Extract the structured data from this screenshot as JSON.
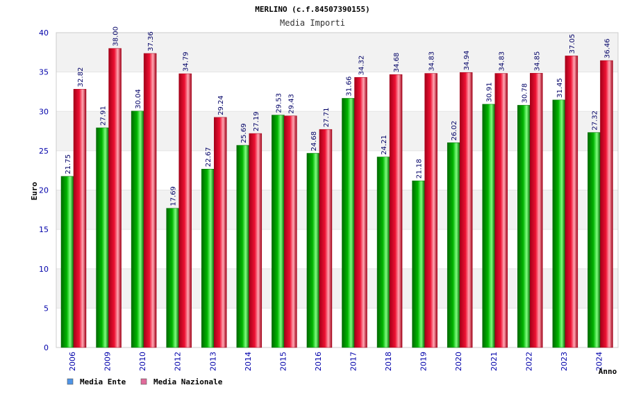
{
  "colors": {
    "ente_main": "#00b400",
    "ente_dark": "#006a00",
    "ente_light": "#7dff7d",
    "nazionale_main": "#ee1133",
    "nazionale_dark": "#a30018",
    "nazionale_light": "#ffa8b4",
    "legend_ente": "#4f94e6",
    "legend_nazionale": "#e06b9a",
    "band": "#f2f2f2",
    "tick_text": "#0000aa"
  },
  "chart_data": {
    "type": "bar",
    "title": "MERLINO (c.f.84507390155)",
    "subtitle": "Media Importi",
    "xlabel": "Anno",
    "ylabel": "Euro",
    "ylim": [
      0,
      40
    ],
    "yticks": [
      "0",
      "5",
      "10",
      "15",
      "20",
      "25",
      "30",
      "35",
      "40"
    ],
    "grid": "alternating horizontal bands",
    "legend_position": "bottom-left",
    "categories": [
      "2006",
      "2009",
      "2010",
      "2012",
      "2013",
      "2014",
      "2015",
      "2016",
      "2017",
      "2018",
      "2019",
      "2020",
      "2021",
      "2022",
      "2023",
      "2024"
    ],
    "series": [
      {
        "name": "Media Ente",
        "values": [
          21.75,
          27.91,
          30.04,
          17.69,
          22.67,
          25.69,
          29.53,
          24.68,
          31.66,
          24.21,
          21.18,
          26.02,
          30.91,
          30.78,
          31.45,
          27.32
        ],
        "labels": [
          "21.75",
          "27.91",
          "30.04",
          "17.69",
          "22.67",
          "25.69",
          "29.53",
          "24.68",
          "31.66",
          "24.21",
          "21.18",
          "26.02",
          "30.91",
          "30.78",
          "31.45",
          "27.32"
        ]
      },
      {
        "name": "Media Nazionale",
        "values": [
          32.82,
          38.0,
          37.36,
          34.79,
          29.24,
          27.19,
          29.43,
          27.71,
          34.32,
          34.68,
          34.83,
          34.94,
          34.83,
          34.85,
          37.05,
          36.46
        ],
        "labels": [
          "32.82",
          "38.00",
          "37.36",
          "34.79",
          "29.24",
          "27.19",
          "29.43",
          "27.71",
          "34.32",
          "34.68",
          "34.83",
          "34.94",
          "34.83",
          "34.85",
          "37.05",
          "36.46"
        ]
      }
    ]
  }
}
